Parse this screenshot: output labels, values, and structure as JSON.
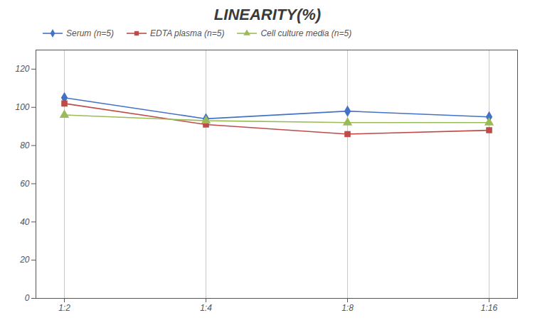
{
  "chart_data": {
    "type": "line",
    "title": "LINEARITY(%)",
    "categories": [
      "1:2",
      "1:4",
      "1:8",
      "1:16"
    ],
    "series": [
      {
        "name": "Serum (n=5)",
        "color": "#4472C4",
        "marker": "diamond",
        "values": [
          105,
          94,
          98,
          95
        ]
      },
      {
        "name": "EDTA plasma (n=5)",
        "color": "#BE4B48",
        "marker": "square",
        "values": [
          102,
          91,
          86,
          88
        ]
      },
      {
        "name": "Cell culture media (n=5)",
        "color": "#9BBB59",
        "marker": "triangle",
        "values": [
          96,
          93,
          92,
          92
        ]
      }
    ],
    "ylim": [
      0,
      130
    ],
    "yticks": [
      0,
      20,
      40,
      60,
      80,
      100,
      120
    ],
    "grid": "x",
    "legend": "top"
  }
}
